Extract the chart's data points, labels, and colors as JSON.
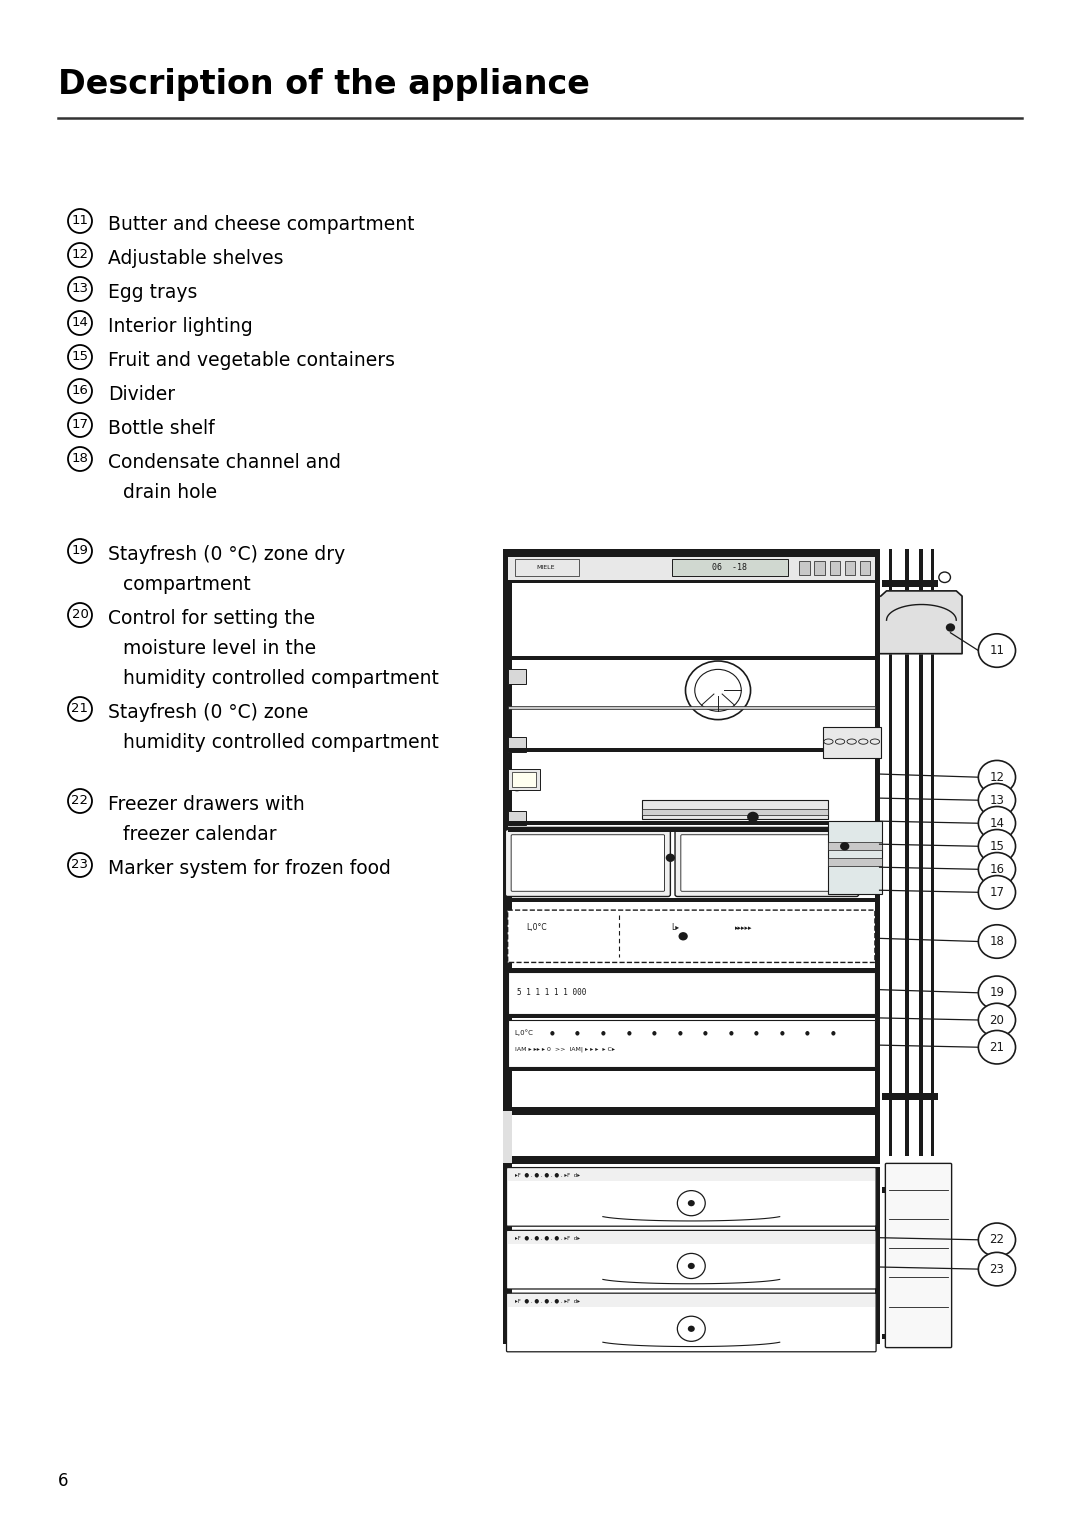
{
  "title": "Description of the appliance",
  "title_fontsize": 24,
  "title_fontweight": "bold",
  "background_color": "#ffffff",
  "text_color": "#000000",
  "page_number": "6",
  "items": [
    {
      "num": "11",
      "text1": "Butter and cheese compartment",
      "text2": null,
      "gap_before": false
    },
    {
      "num": "12",
      "text1": "Adjustable shelves",
      "text2": null,
      "gap_before": false
    },
    {
      "num": "13",
      "text1": "Egg trays",
      "text2": null,
      "gap_before": false
    },
    {
      "num": "14",
      "text1": "Interior lighting",
      "text2": null,
      "gap_before": false
    },
    {
      "num": "15",
      "text1": "Fruit and vegetable containers",
      "text2": null,
      "gap_before": false
    },
    {
      "num": "16",
      "text1": "Divider",
      "text2": null,
      "gap_before": false
    },
    {
      "num": "17",
      "text1": "Bottle shelf",
      "text2": null,
      "gap_before": false
    },
    {
      "num": "18",
      "text1": "Condensate channel and",
      "text2": "drain hole",
      "gap_before": false
    },
    {
      "num": "19",
      "text1": "Stayfresh (0 °C) zone dry",
      "text2": "compartment",
      "gap_before": true
    },
    {
      "num": "20",
      "text1": "Control for setting the",
      "text2": "moisture level in the\nhumidity controlled compartment",
      "gap_before": false
    },
    {
      "num": "21",
      "text1": "Stayfresh (0 °C) zone",
      "text2": "humidity controlled compartment",
      "gap_before": false
    },
    {
      "num": "22",
      "text1": "Freezer drawers with",
      "text2": "freezer calendar",
      "gap_before": true
    },
    {
      "num": "23",
      "text1": "Marker system for frozen food",
      "text2": null,
      "gap_before": false
    }
  ]
}
